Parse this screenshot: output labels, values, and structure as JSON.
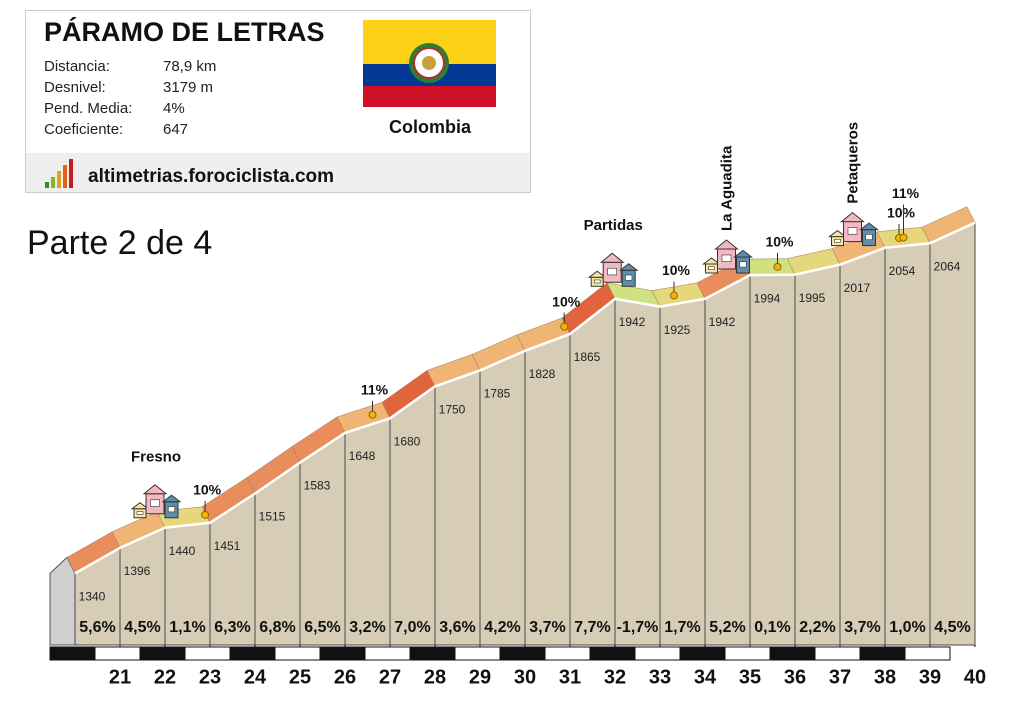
{
  "header": {
    "title": "PÁRAMO DE LETRAS",
    "stats": [
      {
        "label": "Distancia:",
        "value": "78,9 km"
      },
      {
        "label": "Desnivel:",
        "value": "3179 m"
      },
      {
        "label": "Pend. Media:",
        "value": "4%"
      },
      {
        "label": "Coeficiente:",
        "value": "647"
      }
    ],
    "country": "Colombia",
    "site": "altimetrias.forociclista.com",
    "part": "Parte 2 de 4"
  },
  "chart_data": {
    "type": "elevation-profile",
    "x": [
      20,
      21,
      22,
      23,
      24,
      25,
      26,
      27,
      28,
      29,
      30,
      31,
      32,
      33,
      34,
      35,
      36,
      37,
      38,
      39,
      40
    ],
    "elevation": [
      1340,
      1396,
      1440,
      1451,
      1515,
      1583,
      1648,
      1680,
      1750,
      1785,
      1828,
      1865,
      1942,
      1925,
      1942,
      1994,
      1995,
      2017,
      2054,
      2064,
      2109
    ],
    "gradient": [
      5.6,
      4.5,
      1.1,
      6.3,
      6.8,
      6.5,
      3.2,
      7.0,
      3.6,
      4.2,
      3.7,
      7.7,
      -1.7,
      1.7,
      5.2,
      0.1,
      2.2,
      3.7,
      1.0,
      4.5
    ],
    "gradient_labels": [
      "5,6%",
      "4,5%",
      "1,1%",
      "6,3%",
      "6,8%",
      "6,5%",
      "3,2%",
      "7,0%",
      "3,6%",
      "4,2%",
      "3,7%",
      "7,7%",
      "-1,7%",
      "1,7%",
      "5,2%",
      "0,1%",
      "2,2%",
      "3,7%",
      "1,0%",
      "4,5%"
    ],
    "xlim": [
      20,
      40
    ],
    "xticks": [
      21,
      22,
      23,
      24,
      25,
      26,
      27,
      28,
      29,
      30,
      31,
      32,
      33,
      34,
      35,
      36,
      37,
      38,
      39,
      40
    ],
    "ylim": [
      1150,
      2150
    ],
    "towns": [
      {
        "name": "Fresno",
        "x": 21.8,
        "vertical": false
      },
      {
        "name": "Partidas",
        "x": 31.96,
        "vertical": false
      },
      {
        "name": "La Aguadita",
        "x": 34.5,
        "vertical": true
      },
      {
        "name": "Petaqueros",
        "x": 37.3,
        "vertical": true
      }
    ],
    "steep_points": [
      {
        "label": "10%",
        "x": 22.98
      },
      {
        "label": "11%",
        "x": 26.7
      },
      {
        "label": "10%",
        "x": 30.96
      },
      {
        "label": "10%",
        "x": 33.4
      },
      {
        "label": "10%",
        "x": 35.7
      },
      {
        "label": "10%",
        "x": 38.4
      },
      {
        "label": "11%",
        "x": 38.5
      }
    ]
  }
}
